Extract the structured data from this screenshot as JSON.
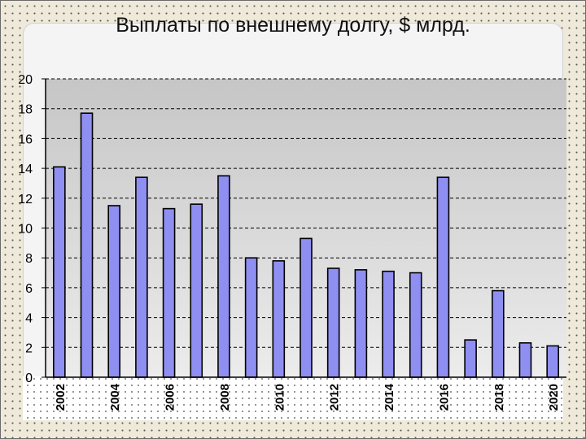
{
  "chart_data": {
    "type": "bar",
    "title": "Выплаты по внешнему долгу, $ млрд.",
    "xlabel": "",
    "ylabel": "",
    "categories": [
      "2002",
      "2003",
      "2004",
      "2005",
      "2006",
      "2007",
      "2008",
      "2009",
      "2010",
      "2011",
      "2012",
      "2013",
      "2014",
      "2015",
      "2016",
      "2017",
      "2018",
      "2019",
      "2020"
    ],
    "x_tick_labels": [
      "2002",
      "2004",
      "2006",
      "2008",
      "2010",
      "2012",
      "2014",
      "2016",
      "2018",
      "2020"
    ],
    "values": [
      14.1,
      17.7,
      11.5,
      13.4,
      11.3,
      11.6,
      13.5,
      8.0,
      7.8,
      9.3,
      7.3,
      7.2,
      7.1,
      7.0,
      13.4,
      2.5,
      5.8,
      2.3,
      2.1
    ],
    "ylim": [
      0,
      20
    ],
    "yticks": [
      0,
      2,
      4,
      6,
      8,
      10,
      12,
      14,
      16,
      18,
      20
    ],
    "grid": true,
    "legend": "none",
    "bar_color": "#8f8ff2",
    "plot_background": "gradient grey"
  }
}
